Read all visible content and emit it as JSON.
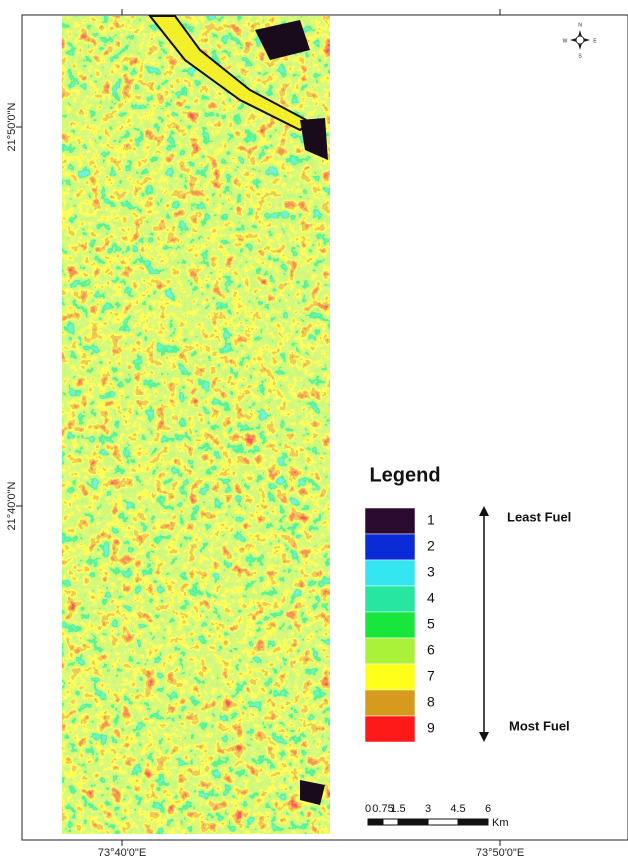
{
  "axes": {
    "y_labels": [
      "21°50'0\"N",
      "21°40'0\"N"
    ],
    "x_labels": [
      "73°40'0\"E",
      "73°50'0\"E"
    ]
  },
  "compass": {
    "n": "N",
    "s": "S",
    "e": "E",
    "w": "W"
  },
  "legend": {
    "title": "Legend",
    "items": [
      {
        "label": "1",
        "color": "#2b0a30"
      },
      {
        "label": "2",
        "color": "#0a2bd6"
      },
      {
        "label": "3",
        "color": "#33e6f2"
      },
      {
        "label": "4",
        "color": "#27e6a0"
      },
      {
        "label": "5",
        "color": "#18e63c"
      },
      {
        "label": "6",
        "color": "#aaf23a"
      },
      {
        "label": "7",
        "color": "#ffff1a"
      },
      {
        "label": "8",
        "color": "#d69a1c"
      },
      {
        "label": "9",
        "color": "#ff1a1a"
      }
    ],
    "least": "Least Fuel",
    "most": "Most Fuel"
  },
  "scale_bar": {
    "labels": [
      "0",
      "0.75",
      "1.5",
      "3",
      "4.5",
      "6"
    ],
    "unit": "Km"
  }
}
